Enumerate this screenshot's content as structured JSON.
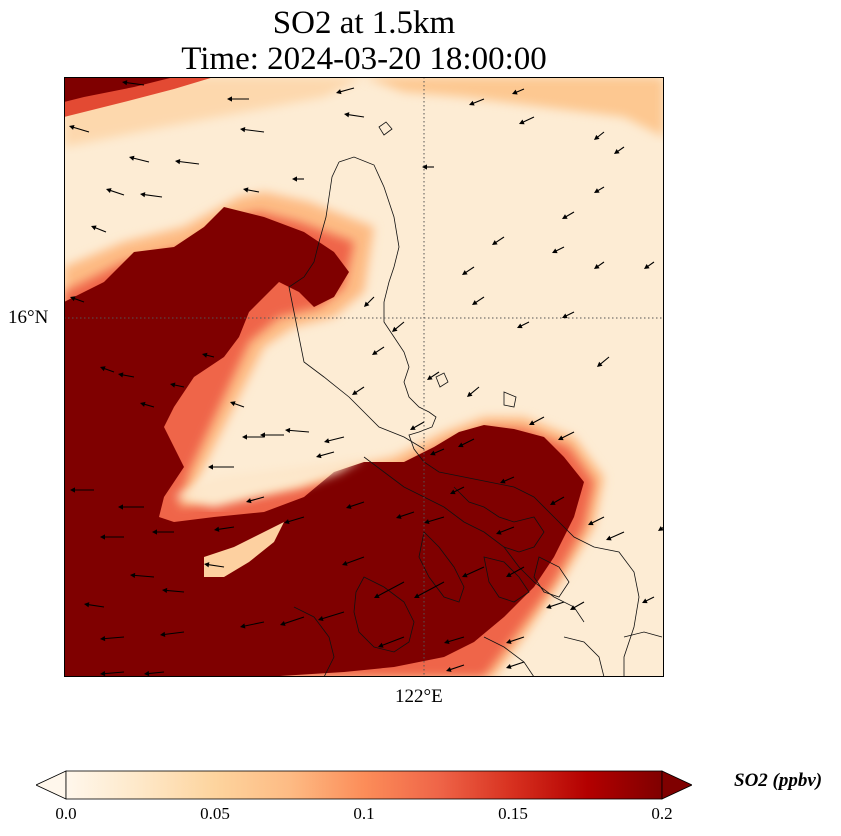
{
  "title": {
    "line1": "SO2 at 1.5km",
    "line2": "Time: 2024-03-20 18:00:00"
  },
  "map": {
    "lat_label": "16°N",
    "lon_label": "122°E",
    "field": "SO2 concentration",
    "wind_vectors": "shown",
    "coastlines": "shown",
    "gridlines": "dotted"
  },
  "colorbar": {
    "label": "SO2 (ppbv)",
    "ticks": [
      "0.0",
      "0.05",
      "0.1",
      "0.15",
      "0.2"
    ],
    "min": 0.0,
    "max": 0.2,
    "extend": "both",
    "colormap": "OrRd",
    "colors": [
      "#fff7ec",
      "#fee8c8",
      "#fdd49e",
      "#fdbb84",
      "#fc8d59",
      "#ef6548",
      "#d7301f",
      "#b30000",
      "#7f0000"
    ]
  }
}
